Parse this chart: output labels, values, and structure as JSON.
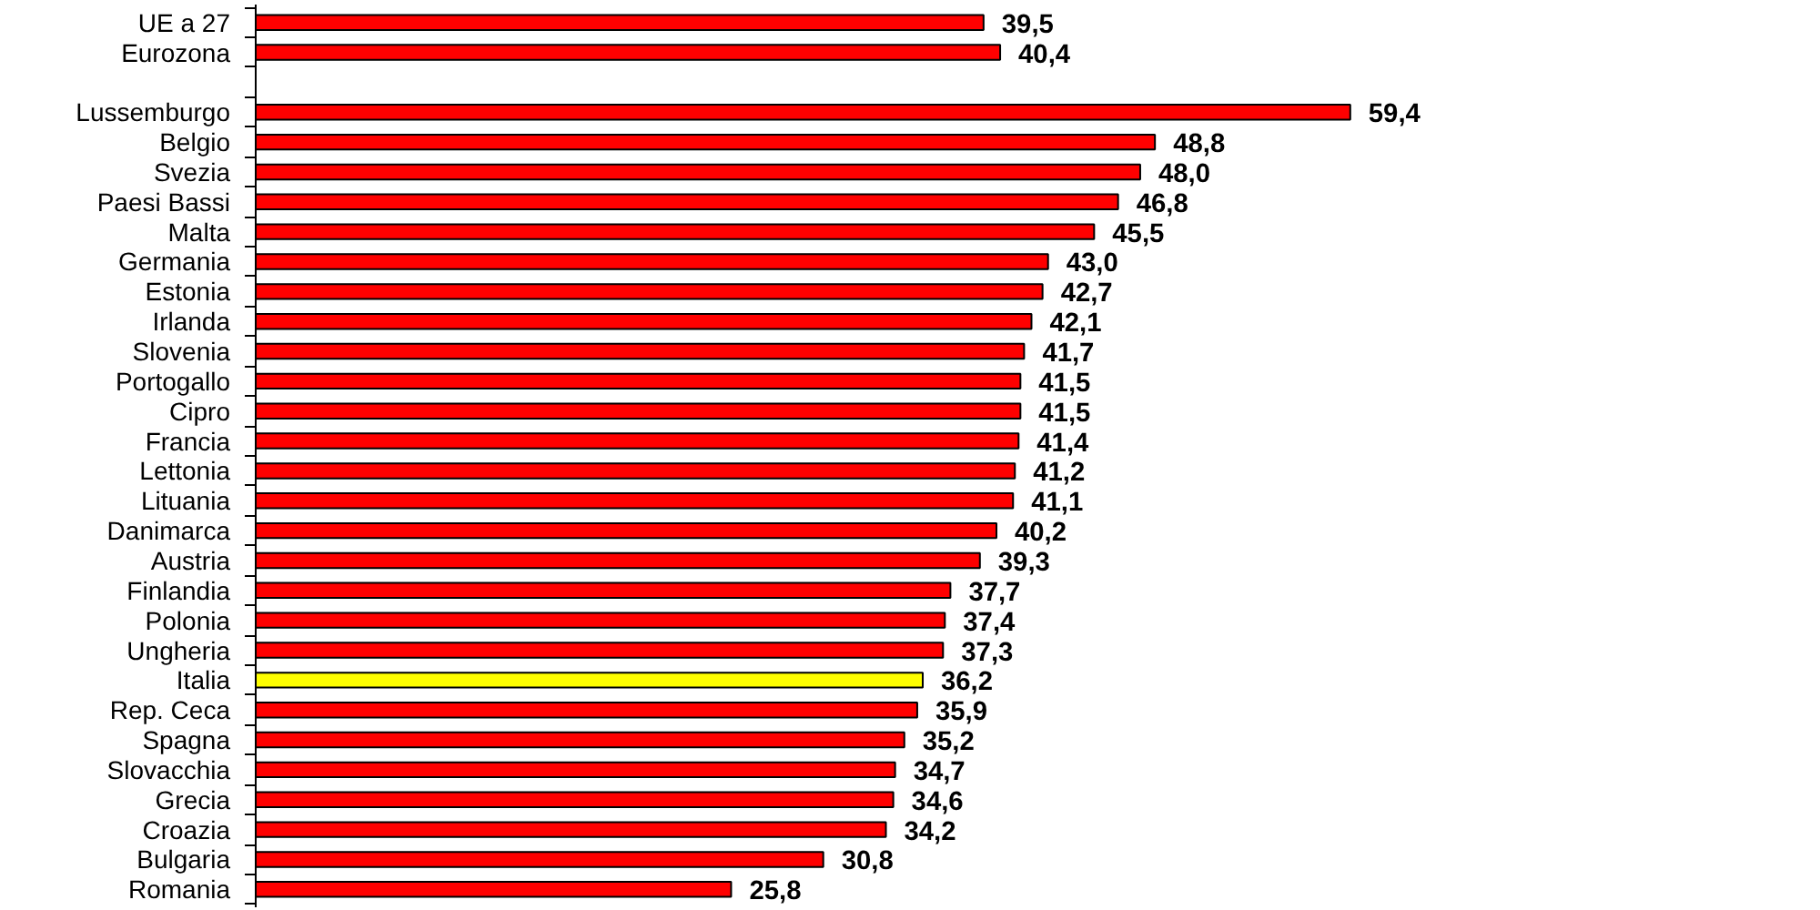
{
  "chart_data": {
    "type": "bar",
    "orientation": "horizontal",
    "categories": [
      "UE a 27",
      "Eurozona",
      null,
      "Lussemburgo",
      "Belgio",
      "Svezia",
      "Paesi Bassi",
      "Malta",
      "Germania",
      "Estonia",
      "Irlanda",
      "Slovenia",
      "Portogallo",
      "Cipro",
      "Francia",
      "Lettonia",
      "Lituania",
      "Danimarca",
      "Austria",
      "Finlandia",
      "Polonia",
      "Ungheria",
      "Italia",
      "Rep. Ceca",
      "Spagna",
      "Slovacchia",
      "Grecia",
      "Croazia",
      "Bulgaria",
      "Romania"
    ],
    "values": [
      39.5,
      40.4,
      null,
      59.4,
      48.8,
      48.0,
      46.8,
      45.5,
      43.0,
      42.7,
      42.1,
      41.7,
      41.5,
      41.5,
      41.4,
      41.2,
      41.1,
      40.2,
      39.3,
      37.7,
      37.4,
      37.3,
      36.2,
      35.9,
      35.2,
      34.7,
      34.6,
      34.2,
      30.8,
      25.8
    ],
    "value_labels": [
      "39,5",
      "40,4",
      null,
      "59,4",
      "48,8",
      "48,0",
      "46,8",
      "45,5",
      "43,0",
      "42,7",
      "42,1",
      "41,7",
      "41,5",
      "41,5",
      "41,4",
      "41,2",
      "41,1",
      "40,2",
      "39,3",
      "37,7",
      "37,4",
      "37,3",
      "36,2",
      "35,9",
      "35,2",
      "34,7",
      "34,6",
      "34,2",
      "30,8",
      "25,8"
    ],
    "colors": [
      "#ff0000",
      "#ff0000",
      null,
      "#ff0000",
      "#ff0000",
      "#ff0000",
      "#ff0000",
      "#ff0000",
      "#ff0000",
      "#ff0000",
      "#ff0000",
      "#ff0000",
      "#ff0000",
      "#ff0000",
      "#ff0000",
      "#ff0000",
      "#ff0000",
      "#ff0000",
      "#ff0000",
      "#ff0000",
      "#ff0000",
      "#ff0000",
      "#ffff00",
      "#ff0000",
      "#ff0000",
      "#ff0000",
      "#ff0000",
      "#ff0000",
      "#ff0000",
      "#ff0000"
    ],
    "tick_labels": "y"
  }
}
